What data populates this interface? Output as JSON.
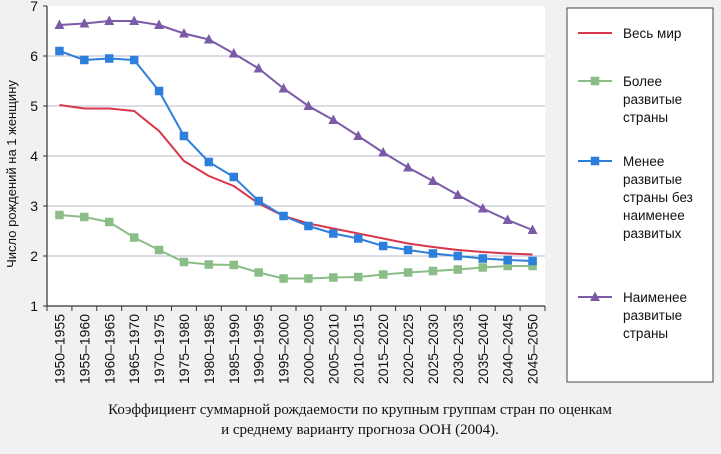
{
  "chart_data": {
    "type": "line",
    "ylabel": "Число рождений на 1 женщину",
    "ylim": [
      1,
      7
    ],
    "yticks": [
      "1",
      "2",
      "3",
      "4",
      "5",
      "6",
      "7"
    ],
    "categories": [
      "1950–1955",
      "1955–1960",
      "1960–1965",
      "1965–1970",
      "1970–1975",
      "1975–1980",
      "1980–1985",
      "1985–1990",
      "1990–1995",
      "1995–2000",
      "2000–2005",
      "2005–2010",
      "2010–2015",
      "2015–2020",
      "2020–2025",
      "2025–2030",
      "2030–2035",
      "2035–2040",
      "2040–2045",
      "2045–2050"
    ],
    "grid": true,
    "legend_position": "right",
    "series": [
      {
        "name": "Весь мир",
        "color": "#d9364b",
        "marker": "none",
        "values": [
          5.02,
          4.95,
          4.95,
          4.9,
          4.5,
          3.9,
          3.6,
          3.4,
          3.05,
          2.8,
          2.65,
          2.55,
          2.45,
          2.35,
          2.25,
          2.18,
          2.12,
          2.08,
          2.05,
          2.03
        ]
      },
      {
        "name": "Более развитые страны",
        "color": "#8bbd86",
        "marker": "square",
        "values": [
          2.82,
          2.78,
          2.68,
          2.37,
          2.12,
          1.88,
          1.83,
          1.82,
          1.67,
          1.55,
          1.55,
          1.57,
          1.58,
          1.63,
          1.67,
          1.7,
          1.73,
          1.77,
          1.8,
          1.8
        ]
      },
      {
        "name": "Менее развитые страны без наименее развитых",
        "color": "#2e7fdc",
        "marker": "square",
        "values": [
          6.1,
          5.92,
          5.95,
          5.92,
          5.3,
          4.4,
          3.88,
          3.58,
          3.1,
          2.8,
          2.6,
          2.45,
          2.35,
          2.2,
          2.12,
          2.05,
          2.0,
          1.95,
          1.92,
          1.9
        ]
      },
      {
        "name": "Наименее развитые страны",
        "color": "#7b5ba8",
        "marker": "triangle",
        "values": [
          6.62,
          6.65,
          6.7,
          6.7,
          6.62,
          6.45,
          6.33,
          6.05,
          5.75,
          5.35,
          5.0,
          4.72,
          4.4,
          4.07,
          3.77,
          3.5,
          3.22,
          2.95,
          2.72,
          2.52
        ]
      }
    ]
  },
  "legend": [
    {
      "lines": [
        "Весь мир"
      ]
    },
    {
      "lines": [
        "Более",
        "развитые",
        "страны"
      ]
    },
    {
      "lines": [
        "Менее",
        "развитые",
        "страны без",
        "наименее",
        "развитых"
      ]
    },
    {
      "lines": [
        "Наименее",
        "развитые",
        "страны"
      ]
    }
  ],
  "caption": {
    "line1": "Коэффициент суммарной рождаемости по крупным группам стран по оценкам",
    "line2": "и среднему варианту прогноза ООН (2004)."
  }
}
